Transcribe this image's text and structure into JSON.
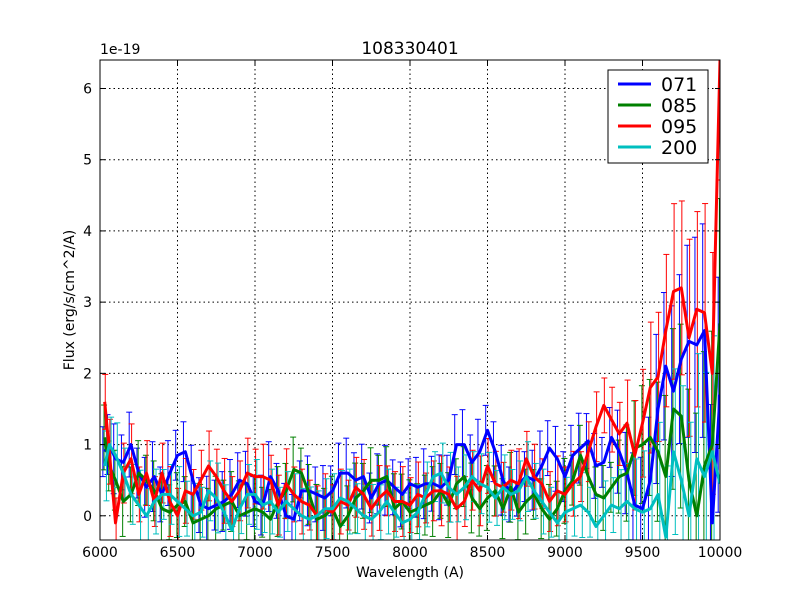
{
  "chart_data": {
    "type": "line",
    "title": "108330401",
    "xlabel": "Wavelength (A)",
    "ylabel": "Flux (erg/s/cm^2/A)",
    "offset_text": "1e-19",
    "xlim": [
      6000,
      10000
    ],
    "ylim": [
      -0.34,
      6.4
    ],
    "xticks": [
      6000,
      6500,
      7000,
      7500,
      8000,
      8500,
      9000,
      9500,
      10000
    ],
    "yticks": [
      0,
      1,
      2,
      3,
      4,
      5,
      6
    ],
    "grid": true,
    "legend_position": "top-right",
    "yerr_base": 0.35,
    "yerr_end": 1.3,
    "x": [
      6030,
      6060,
      6100,
      6150,
      6200,
      6250,
      6300,
      6350,
      6400,
      6450,
      6500,
      6550,
      6600,
      6650,
      6700,
      6750,
      6800,
      6850,
      6900,
      6950,
      7000,
      7050,
      7100,
      7150,
      7200,
      7250,
      7300,
      7350,
      7400,
      7450,
      7500,
      7550,
      7600,
      7650,
      7700,
      7750,
      7800,
      7850,
      7900,
      7950,
      8000,
      8050,
      8100,
      8150,
      8200,
      8250,
      8300,
      8350,
      8400,
      8450,
      8500,
      8550,
      8600,
      8650,
      8700,
      8750,
      8800,
      8850,
      8900,
      8950,
      9000,
      9050,
      9100,
      9150,
      9200,
      9250,
      9300,
      9350,
      9400,
      9450,
      9500,
      9550,
      9600,
      9650,
      9700,
      9750,
      9800,
      9850,
      9900,
      9950,
      10000
    ],
    "series": [
      {
        "name": "071",
        "color": "#0000ff",
        "values": [
          0.9,
          1.0,
          0.8,
          0.75,
          1.0,
          0.6,
          0.4,
          0.55,
          0.3,
          0.6,
          0.85,
          0.9,
          0.5,
          0.15,
          0.1,
          0.15,
          0.2,
          0.3,
          0.5,
          0.45,
          0.2,
          0.15,
          0.55,
          0.35,
          0.0,
          -0.05,
          0.35,
          0.35,
          0.3,
          0.25,
          0.35,
          0.6,
          0.6,
          0.5,
          0.55,
          0.25,
          0.45,
          0.5,
          0.4,
          0.3,
          0.45,
          0.4,
          0.45,
          0.45,
          0.4,
          0.5,
          1.0,
          1.0,
          0.75,
          0.9,
          1.2,
          0.9,
          0.5,
          0.3,
          0.45,
          0.55,
          0.5,
          0.7,
          0.95,
          0.8,
          0.55,
          0.85,
          0.95,
          1.05,
          0.7,
          0.75,
          1.1,
          0.9,
          0.6,
          0.15,
          0.1,
          0.5,
          1.5,
          2.1,
          1.75,
          2.2,
          2.45,
          2.4,
          2.6,
          -0.1,
          1.7
        ]
      },
      {
        "name": "085",
        "color": "#008000",
        "values": [
          1.1,
          0.7,
          0.5,
          0.2,
          0.3,
          0.6,
          0.5,
          0.35,
          0.1,
          0.05,
          0.15,
          0.2,
          -0.1,
          -0.05,
          0.0,
          0.1,
          0.15,
          0.2,
          0.0,
          0.05,
          0.1,
          0.05,
          -0.05,
          0.2,
          0.35,
          0.65,
          0.6,
          0.3,
          -0.05,
          0.0,
          0.1,
          -0.15,
          0.0,
          0.25,
          0.35,
          0.5,
          0.5,
          0.55,
          0.1,
          0.2,
          0.05,
          0.1,
          0.15,
          0.2,
          0.35,
          0.15,
          0.45,
          0.55,
          0.25,
          0.1,
          0.25,
          0.35,
          0.1,
          0.4,
          0.05,
          0.2,
          0.3,
          0.1,
          -0.05,
          0.1,
          0.35,
          0.5,
          0.85,
          0.55,
          0.3,
          0.25,
          0.4,
          0.55,
          0.6,
          0.95,
          1.0,
          1.1,
          0.9,
          0.55,
          1.5,
          1.4,
          0.5,
          0.0,
          0.7,
          1.0,
          2.7
        ]
      },
      {
        "name": "095",
        "color": "#ff0000",
        "values": [
          1.6,
          0.9,
          -0.1,
          0.6,
          0.8,
          0.3,
          0.6,
          0.2,
          0.6,
          0.2,
          0.0,
          0.35,
          0.3,
          0.5,
          0.7,
          0.55,
          0.35,
          0.2,
          0.35,
          0.6,
          0.55,
          0.55,
          0.5,
          0.15,
          0.45,
          0.3,
          0.2,
          0.15,
          0.0,
          0.1,
          0.05,
          0.2,
          0.15,
          0.4,
          0.3,
          0.1,
          0.25,
          0.35,
          0.2,
          0.2,
          0.15,
          0.3,
          0.25,
          0.35,
          0.35,
          0.3,
          0.1,
          0.2,
          0.5,
          0.35,
          0.7,
          0.45,
          0.4,
          0.5,
          0.45,
          0.8,
          0.55,
          0.45,
          0.2,
          0.35,
          0.3,
          0.45,
          0.55,
          0.9,
          1.25,
          1.55,
          1.35,
          1.15,
          1.3,
          0.85,
          1.3,
          1.8,
          1.95,
          2.6,
          3.15,
          3.2,
          2.5,
          2.9,
          2.85,
          2.0,
          6.4
        ]
      },
      {
        "name": "200",
        "color": "#00bfbf",
        "values": [
          0.7,
          1.0,
          0.85,
          0.6,
          0.3,
          0.15,
          0.0,
          0.2,
          0.3,
          0.3,
          0.2,
          0.1,
          0.0,
          0.05,
          0.35,
          0.25,
          0.05,
          -0.2,
          0.1,
          0.3,
          0.3,
          0.15,
          0.2,
          0.05,
          0.2,
          0.1,
          0.0,
          -0.05,
          0.0,
          0.1,
          0.1,
          0.25,
          0.2,
          0.1,
          0.0,
          -0.05,
          0.05,
          0.2,
          0.05,
          -0.1,
          -0.05,
          0.05,
          0.3,
          0.55,
          0.6,
          0.4,
          0.3,
          0.4,
          0.55,
          0.45,
          0.4,
          0.25,
          0.4,
          0.3,
          0.35,
          0.55,
          0.35,
          0.2,
          0.05,
          -0.1,
          0.05,
          0.1,
          0.15,
          0.05,
          -0.15,
          0.0,
          0.15,
          0.1,
          0.2,
          0.1,
          0.05,
          0.1,
          0.3,
          -0.3,
          0.9,
          0.5,
          0.0,
          0.8,
          0.55,
          0.9,
          0.45
        ]
      }
    ]
  }
}
